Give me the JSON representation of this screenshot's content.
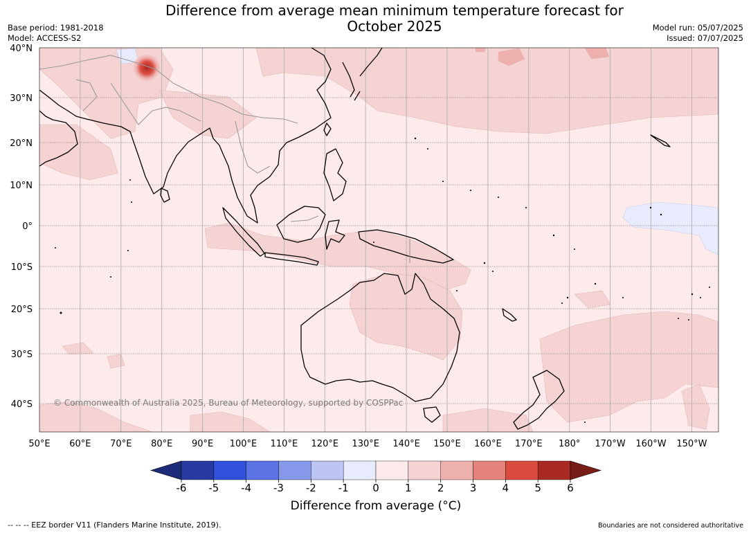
{
  "title_line1": "Difference from average mean minimum temperature forecast for",
  "title_line2": "October 2025",
  "base_period": "Base period: 1981-2018",
  "model": "Model: ACCESS-S2",
  "model_run": "Model run: 05/07/2025",
  "issued": "Issued: 07/07/2025",
  "copyright": "© Commonwealth of Australia 2025, Bureau of Meteorology, supported by COSPPac",
  "eez_note": "--  --  -- EEZ border V11 (Flanders Marine Institute, 2019).",
  "boundaries_note": "Boundaries are not considered authoritative",
  "lat_labels": [
    "40°N",
    "30°N",
    "20°N",
    "10°N",
    "0°",
    "10°S",
    "20°S",
    "30°S",
    "40°S"
  ],
  "lon_labels": [
    "50°E",
    "60°E",
    "70°E",
    "80°E",
    "90°E",
    "100°E",
    "110°E",
    "120°E",
    "130°E",
    "140°E",
    "150°E",
    "160°E",
    "170°E",
    "180°",
    "170°W",
    "160°W",
    "150°W"
  ],
  "colorbar": {
    "title": "Difference from average ($^\\circ$C)",
    "title_display": "Difference from average (°C)",
    "ticks": [
      "-6",
      "-5",
      "-4",
      "-3",
      "-2",
      "-1",
      "0",
      "1",
      "2",
      "3",
      "4",
      "5",
      "6"
    ],
    "colors": [
      "#273a9f",
      "#3150dc",
      "#5b73e3",
      "#8598e9",
      "#bdc5f4",
      "#e8ebfb",
      "#fcebea",
      "#f4d3d2",
      "#edb0ad",
      "#e6827c",
      "#dc4b40",
      "#a92a22"
    ],
    "under_color": "#1c2c78",
    "over_color": "#781c17"
  },
  "colors": {
    "base_fill": "#fcebea",
    "warm_fill": "#f4d3d2",
    "warmer_fill": "#edb0ad",
    "cool_fill": "#e8ebfb",
    "hot_fill": "#dc4b40",
    "coast": "#000000",
    "border": "#999999",
    "grid": "#888888"
  }
}
